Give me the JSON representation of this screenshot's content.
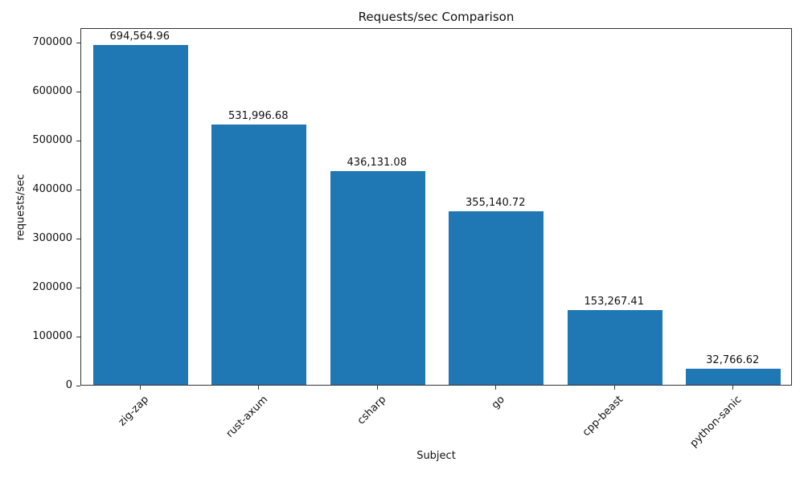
{
  "chart_data": {
    "type": "bar",
    "title": "Requests/sec Comparison",
    "xlabel": "Subject",
    "ylabel": "requests/sec",
    "categories": [
      "zig-zap",
      "rust-axum",
      "csharp",
      "go",
      "cpp-beast",
      "python-sanic"
    ],
    "values": [
      694564.96,
      531996.68,
      436131.08,
      355140.72,
      153267.41,
      32766.62
    ],
    "value_labels": [
      "694,564.96",
      "531,996.68",
      "436,131.08",
      "355,140.72",
      "153,267.41",
      "32,766.62"
    ],
    "bar_color": "#1f77b4",
    "ylim": [
      0,
      730000
    ],
    "yticks": [
      0,
      100000,
      200000,
      300000,
      400000,
      500000,
      600000,
      700000
    ],
    "grid": false,
    "legend_position": "none"
  }
}
